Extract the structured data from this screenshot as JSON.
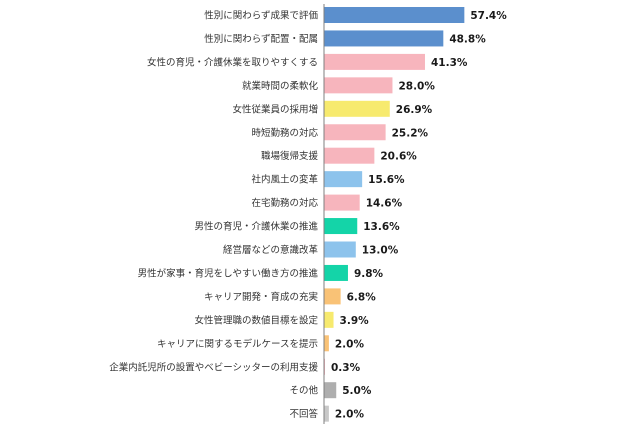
{
  "chart_data": {
    "type": "bar",
    "orientation": "horizontal",
    "unit": "%",
    "xlim": [
      0,
      60
    ],
    "grid": false,
    "legend": "none",
    "categories": [
      "性別に関わらず成果で評価",
      "性別に関わらず配置・配属",
      "女性の育児・介護休業を取りやすくする",
      "就業時間の柔軟化",
      "女性従業員の採用増",
      "時短勤務の対応",
      "職場復帰支援",
      "社内風土の変革",
      "在宅勤務の対応",
      "男性の育児・介護休業の推進",
      "経営層などの意識改革",
      "男性が家事・育児をしやすい働き方の推進",
      "キャリア開発・育成の充実",
      "女性管理職の数値目標を設定",
      "キャリアに関するモデルケースを提示",
      "企業内託児所の設置やベビーシッターの利用支援",
      "その他",
      "不回答"
    ],
    "values": [
      57.4,
      48.8,
      41.3,
      28.0,
      26.9,
      25.2,
      20.6,
      15.6,
      14.6,
      13.6,
      13.0,
      9.8,
      6.8,
      3.9,
      2.0,
      0.3,
      5.0,
      2.0
    ],
    "value_labels": [
      "57.4%",
      "48.8%",
      "41.3%",
      "28.0%",
      "26.9%",
      "25.2%",
      "20.6%",
      "15.6%",
      "14.6%",
      "13.6%",
      "13.0%",
      "9.8%",
      "6.8%",
      "3.9%",
      "2.0%",
      "0.3%",
      "5.0%",
      "2.0%"
    ],
    "bar_colors": [
      "#5b8fcd",
      "#5b8fcd",
      "#f7b5bd",
      "#f7b5bd",
      "#f7ea6e",
      "#f7b5bd",
      "#f7b5bd",
      "#8dc3ec",
      "#f7b5bd",
      "#14d4a8",
      "#8dc3ec",
      "#14d4a8",
      "#f9c276",
      "#f7ea6e",
      "#f9c276",
      "#f7b5bd",
      "#aeaeae",
      "#c8c8c8"
    ],
    "axis_color": "#7f7f7f"
  }
}
